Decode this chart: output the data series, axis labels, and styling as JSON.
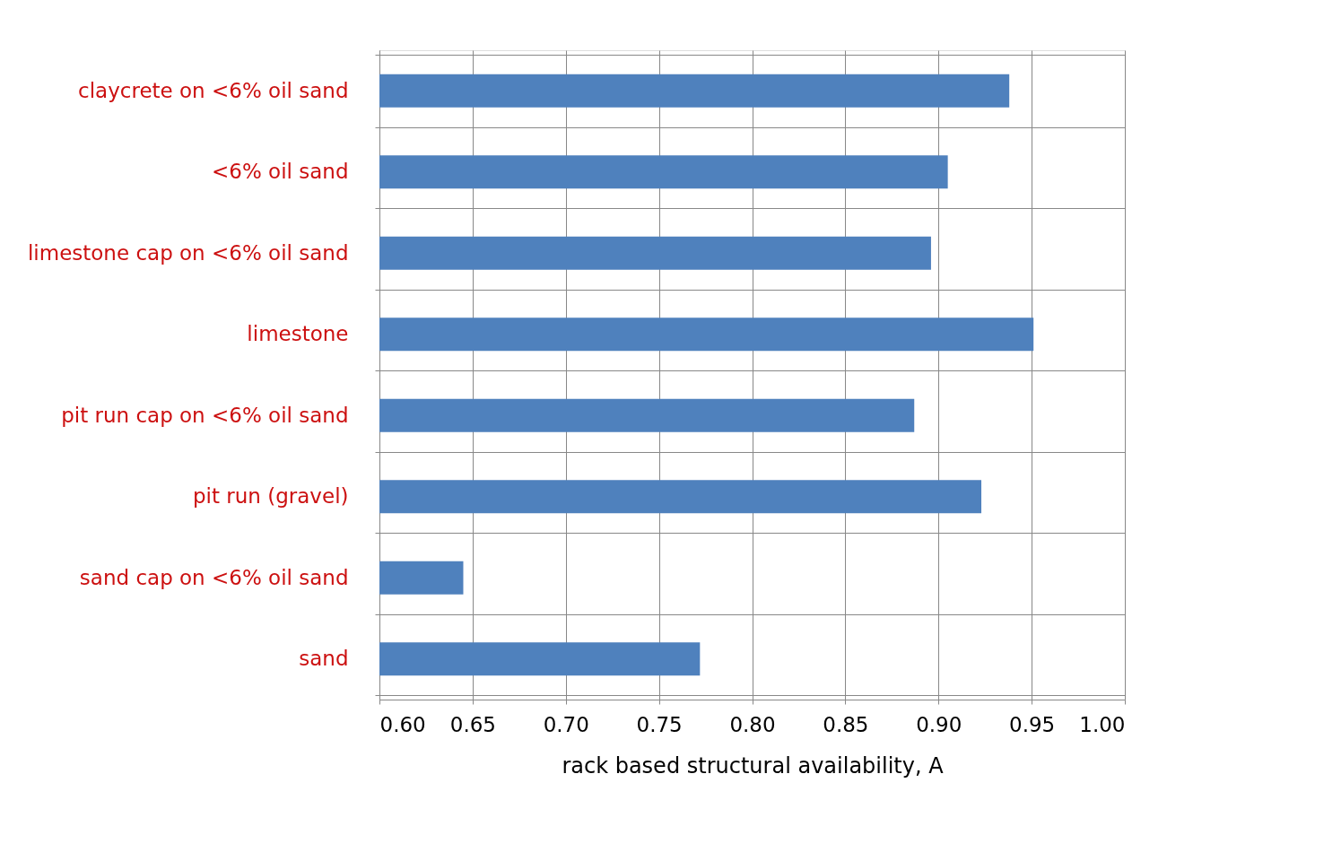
{
  "chart_data": {
    "type": "bar",
    "orientation": "horizontal",
    "xlabel": "rack based structural availability,  A",
    "categories": [
      "claycrete on <6% oil sand",
      "<6% oil sand",
      "limestone cap on <6% oil sand",
      "limestone",
      "pit run cap on <6% oil sand",
      "pit run (gravel)",
      "sand cap on <6% oil sand",
      "sand"
    ],
    "values": [
      0.938,
      0.905,
      0.896,
      0.951,
      0.887,
      0.923,
      0.645,
      0.772
    ],
    "color": "#4f81bd",
    "xlim": [
      0.6,
      1.0
    ],
    "xticks": [
      {
        "value": 0.6,
        "label": "0.60"
      },
      {
        "value": 0.65,
        "label": "0.65"
      },
      {
        "value": 0.7,
        "label": "0.70"
      },
      {
        "value": 0.75,
        "label": "0.75"
      },
      {
        "value": 0.8,
        "label": "0.80"
      },
      {
        "value": 0.85,
        "label": "0.85"
      },
      {
        "value": 0.9,
        "label": "0.90"
      },
      {
        "value": 0.95,
        "label": "0.95"
      },
      {
        "value": 1.0,
        "label": "1.00"
      }
    ],
    "grid": true
  }
}
